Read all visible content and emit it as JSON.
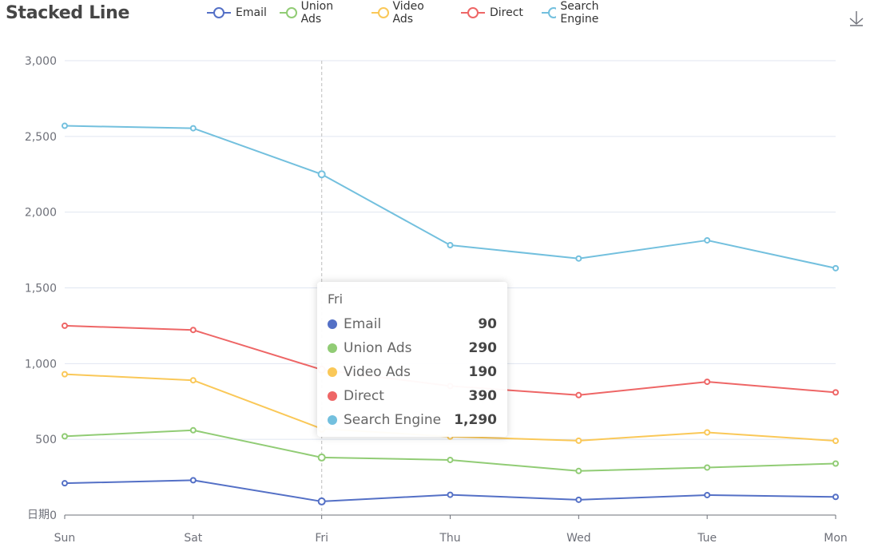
{
  "title": "Stacked Line",
  "tooltip": {
    "title": "Fri",
    "rows": [
      {
        "name": "Email",
        "value": "90"
      },
      {
        "name": "Union Ads",
        "value": "290"
      },
      {
        "name": "Video Ads",
        "value": "190"
      },
      {
        "name": "Direct",
        "value": "390"
      },
      {
        "name": "Search Engine",
        "value": "1,290"
      }
    ]
  },
  "toolbox": {
    "icon": "download-icon"
  },
  "chart_data": {
    "type": "line",
    "stacked": true,
    "title": "Stacked Line",
    "xlabel": "日期",
    "ylabel": "",
    "categories": [
      "Sun",
      "Sat",
      "Fri",
      "Thu",
      "Wed",
      "Tue",
      "Mon"
    ],
    "ylim": [
      0,
      3000
    ],
    "yticks": [
      0,
      500,
      1000,
      1500,
      2000,
      2500,
      3000
    ],
    "ytick_labels": [
      "0",
      "500",
      "1,000",
      "1,500",
      "2,000",
      "2,500",
      "3,000"
    ],
    "grid": true,
    "legend_position": "top",
    "highlighted_category": "Fri",
    "series": [
      {
        "name": "Email",
        "color": "#5470c6",
        "values": [
          210,
          230,
          90,
          134,
          101,
          132,
          120
        ]
      },
      {
        "name": "Union Ads",
        "color": "#91cc75",
        "values": [
          310,
          330,
          290,
          230,
          190,
          182,
          220
        ]
      },
      {
        "name": "Video Ads",
        "color": "#fac858",
        "values": [
          410,
          330,
          190,
          154,
          200,
          232,
          150
        ]
      },
      {
        "name": "Direct",
        "color": "#ee6666",
        "values": [
          320,
          332,
          390,
          334,
          301,
          334,
          320
        ]
      },
      {
        "name": "Search Engine",
        "color": "#73c0de",
        "values": [
          1320,
          1332,
          1290,
          930,
          902,
          934,
          820
        ]
      }
    ]
  }
}
